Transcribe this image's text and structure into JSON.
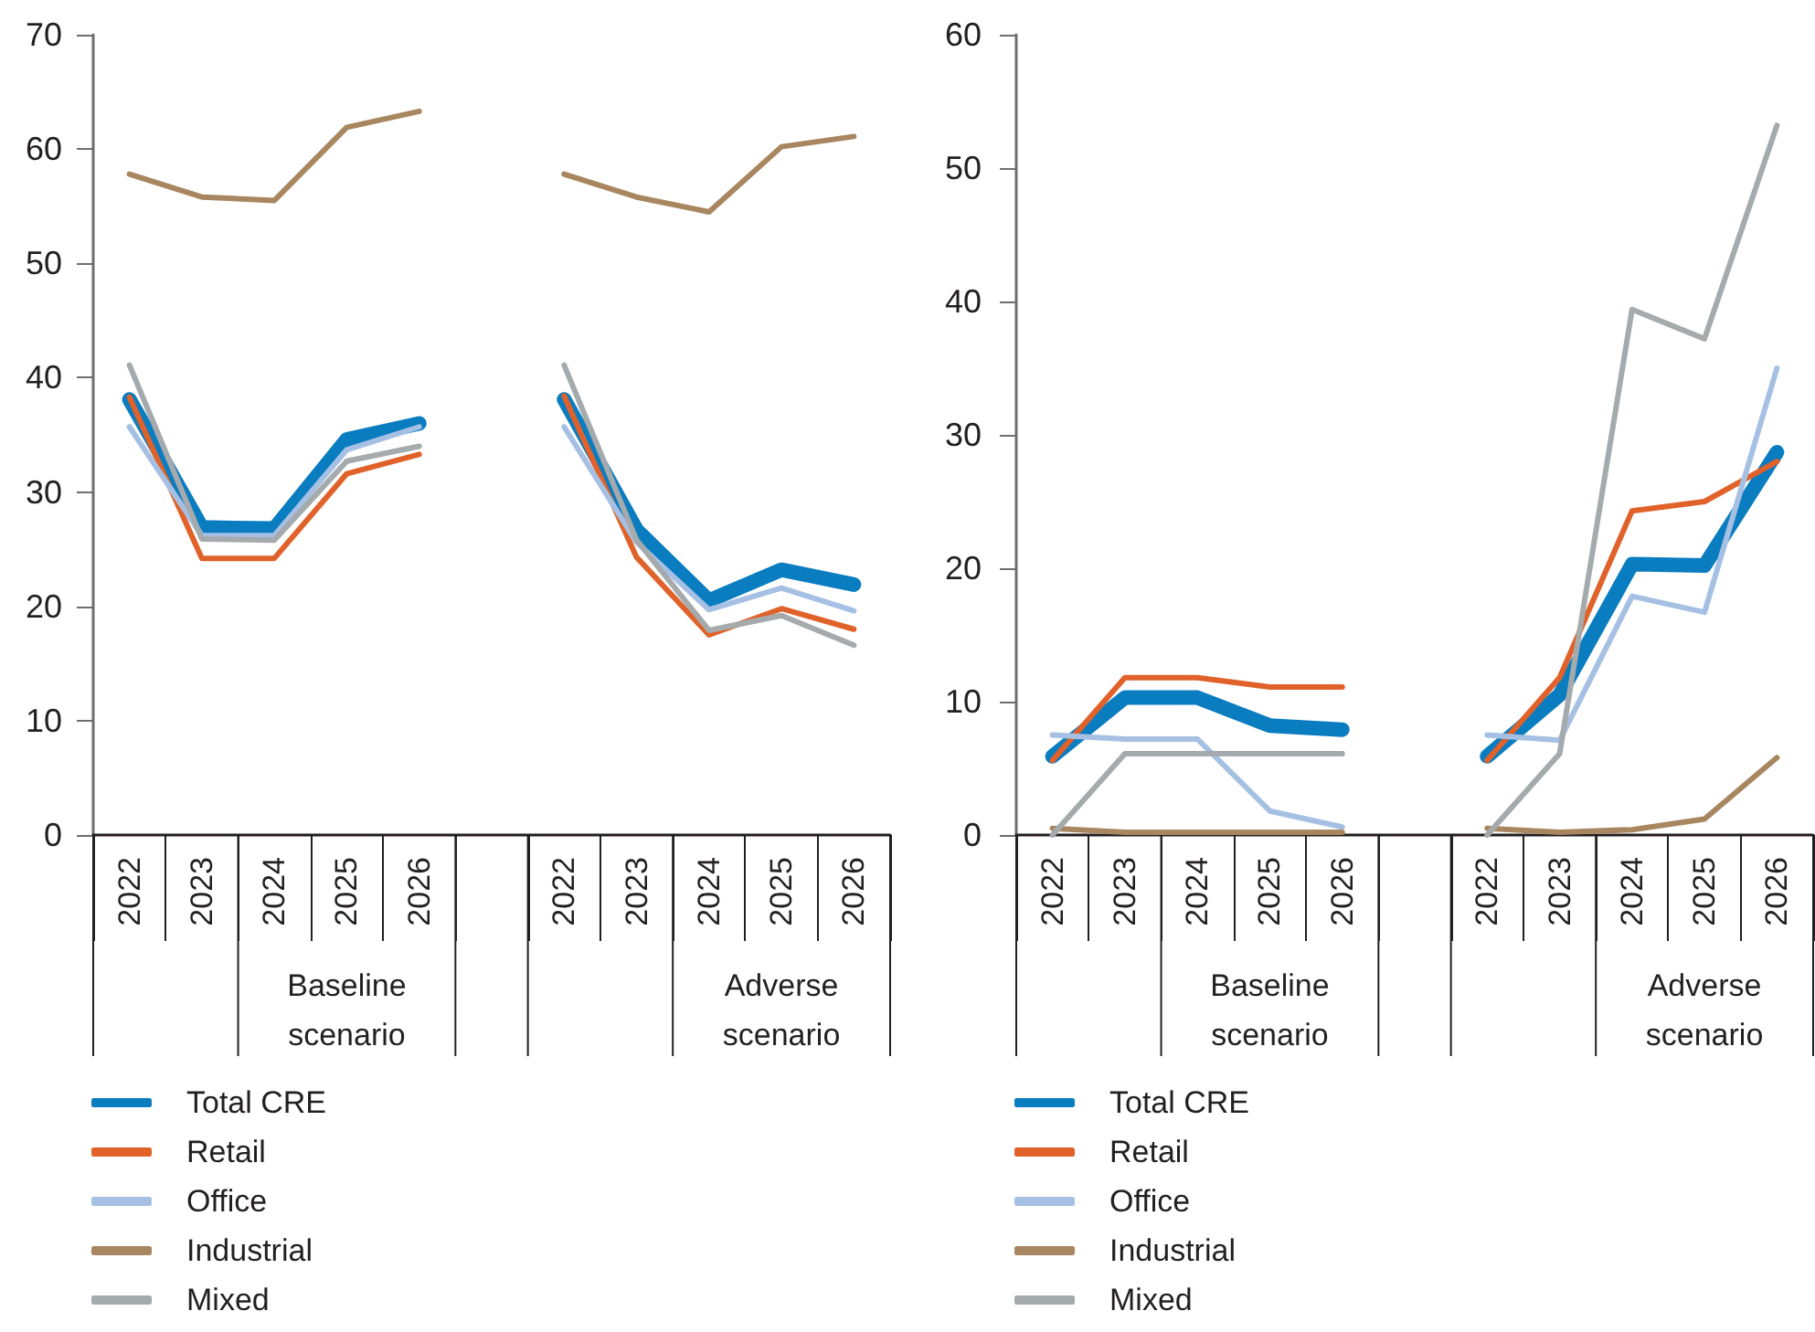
{
  "chart_data": [
    {
      "type": "line",
      "categories": [
        "2022",
        "2023",
        "2024",
        "2025",
        "2026",
        null,
        "2022",
        "2023",
        "2024",
        "2025",
        "2026"
      ],
      "series": [
        {
          "name": "Total CRE",
          "color": "#0a7cc0",
          "values": [
            38.1,
            26.9,
            26.8,
            34.6,
            36.0,
            null,
            38.1,
            26.7,
            20.5,
            23.2,
            21.9
          ]
        },
        {
          "name": "Retail",
          "color": "#e0622a",
          "values": [
            38.3,
            24.2,
            24.2,
            31.6,
            33.3,
            null,
            38.4,
            24.3,
            17.5,
            19.8,
            18.0
          ]
        },
        {
          "name": "Office",
          "color": "#a6c0e4",
          "values": [
            35.7,
            26.2,
            26.2,
            33.7,
            35.7,
            null,
            35.7,
            25.6,
            19.7,
            21.6,
            19.6
          ]
        },
        {
          "name": "Industrial",
          "color": "#a88660",
          "values": [
            57.8,
            55.8,
            55.5,
            61.9,
            63.3,
            null,
            57.8,
            55.8,
            54.5,
            60.2,
            61.1
          ]
        },
        {
          "name": "Mixed",
          "color": "#a5aaad",
          "values": [
            41.1,
            25.9,
            25.8,
            32.7,
            34.0,
            null,
            41.1,
            25.8,
            17.9,
            19.2,
            16.6
          ]
        }
      ],
      "ylim": [
        0,
        70
      ],
      "yticks": [
        0,
        10,
        20,
        30,
        40,
        50,
        60,
        70
      ],
      "grid": false,
      "marker": "none",
      "legend": "bottom left",
      "annotations": [
        "Baseline scenario",
        "Adverse scenario"
      ]
    },
    {
      "type": "line",
      "categories": [
        "2022",
        "2023",
        "2024",
        "2025",
        "2026",
        null,
        "2022",
        "2023",
        "2024",
        "2025",
        "2026"
      ],
      "series": [
        {
          "name": "Total CRE",
          "color": "#0a7cc0",
          "values": [
            5.9,
            10.3,
            10.3,
            8.2,
            7.9,
            null,
            5.9,
            10.5,
            20.3,
            20.2,
            28.7
          ]
        },
        {
          "name": "Retail",
          "color": "#e0622a",
          "values": [
            5.6,
            11.8,
            11.8,
            11.1,
            11.1,
            null,
            5.6,
            11.8,
            24.3,
            25.0,
            28.0
          ]
        },
        {
          "name": "Office",
          "color": "#a6c0e4",
          "values": [
            7.5,
            7.2,
            7.2,
            1.8,
            0.6,
            null,
            7.5,
            7.1,
            17.9,
            16.7,
            35.0
          ]
        },
        {
          "name": "Industrial",
          "color": "#a88660",
          "values": [
            0.5,
            0.2,
            0.2,
            0.2,
            0.2,
            null,
            0.5,
            0.2,
            0.4,
            1.2,
            5.8
          ]
        },
        {
          "name": "Mixed",
          "color": "#a5aaad",
          "values": [
            0.0,
            6.1,
            6.1,
            6.1,
            6.1,
            null,
            0.0,
            6.1,
            39.4,
            37.2,
            53.2
          ]
        }
      ],
      "ylim": [
        0,
        60
      ],
      "yticks": [
        0,
        10,
        20,
        30,
        40,
        50,
        60
      ],
      "grid": false,
      "marker": "none",
      "legend": "bottom left",
      "annotations": [
        "Baseline scenario",
        "Adverse scenario"
      ]
    }
  ]
}
